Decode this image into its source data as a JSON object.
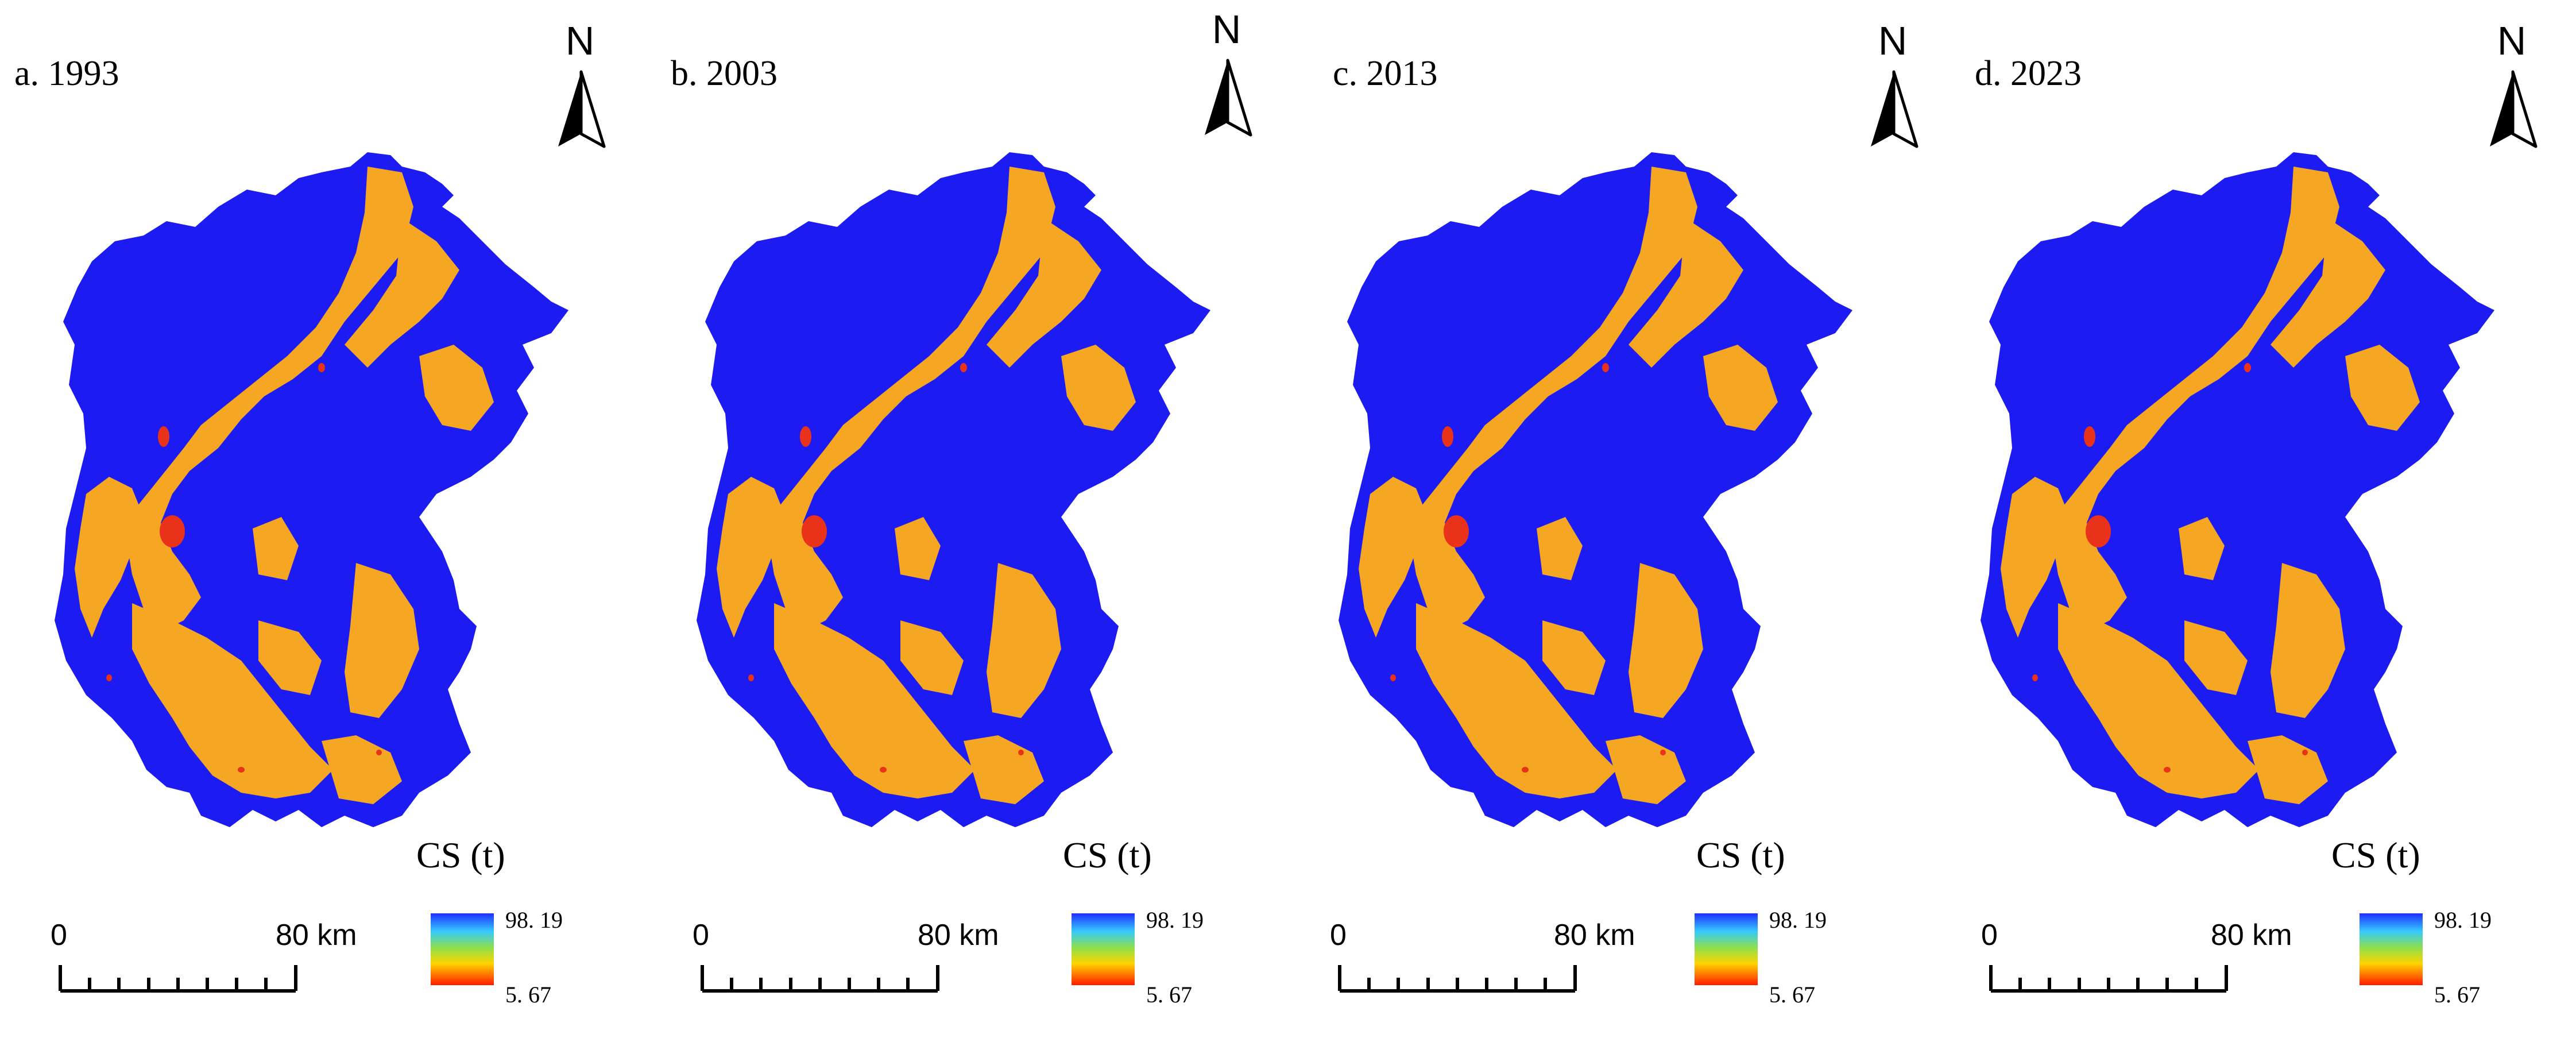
{
  "figure": {
    "panels": [
      {
        "label": "a. 1993"
      },
      {
        "label": "b. 2003"
      },
      {
        "label": "c. 2013"
      },
      {
        "label": "d. 2023"
      }
    ],
    "north_letter": "N",
    "legend": {
      "title": "CS (t)",
      "max_label": "98. 19",
      "min_label": "5. 67",
      "max_value": 98.19,
      "min_value": 5.67,
      "colors": {
        "high": "#1f2fff",
        "mid_high": "#35c9ff",
        "mid": "#8fe04a",
        "mid_low": "#ffd400",
        "low": "#ff1a00"
      }
    },
    "scale": {
      "start_label": "0",
      "end_label": "80 km"
    },
    "map_colors": {
      "base": "#1c1cf2",
      "moderate": "#f5a623",
      "low": "#e8321a"
    }
  }
}
